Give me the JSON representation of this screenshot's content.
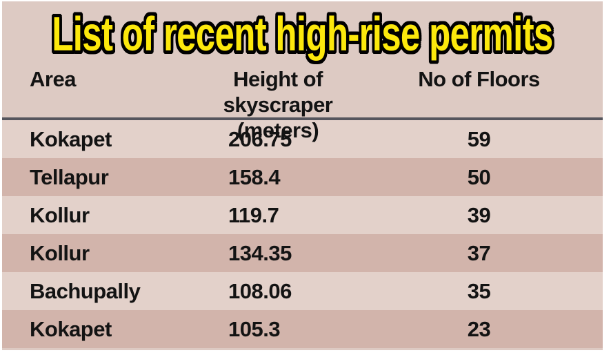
{
  "title": "List of recent high-rise permits",
  "colors": {
    "card_background": "#ddcac3",
    "row_light": "#e3d1ca",
    "row_dark": "#d2b4ab",
    "title_fill": "#fce80c",
    "title_outline": "#000000",
    "divider": "#55555d",
    "text": "#131313",
    "page_margin": "#ffffff"
  },
  "table": {
    "headers": {
      "area": "Area",
      "height_line1": "Height of",
      "height_line2": "skyscraper (meters)",
      "floors": "No of Floors"
    },
    "rows": [
      {
        "area": "Kokapet",
        "height": "206.75",
        "floors": "59"
      },
      {
        "area": "Tellapur",
        "height": "158.4",
        "floors": "50"
      },
      {
        "area": "Kollur",
        "height": "119.7",
        "floors": "39"
      },
      {
        "area": "Kollur",
        "height": "134.35",
        "floors": "37"
      },
      {
        "area": "Bachupally",
        "height": "108.06",
        "floors": "35"
      },
      {
        "area": "Kokapet",
        "height": "105.3",
        "floors": "23"
      }
    ]
  },
  "chart_data": {
    "type": "table",
    "title": "List of recent high-rise permits",
    "columns": [
      "Area",
      "Height of skyscraper (meters)",
      "No of Floors"
    ],
    "rows": [
      [
        "Kokapet",
        206.75,
        59
      ],
      [
        "Tellapur",
        158.4,
        50
      ],
      [
        "Kollur",
        119.7,
        39
      ],
      [
        "Kollur",
        134.35,
        37
      ],
      [
        "Bachupally",
        108.06,
        35
      ],
      [
        "Kokapet",
        105.3,
        23
      ]
    ]
  }
}
